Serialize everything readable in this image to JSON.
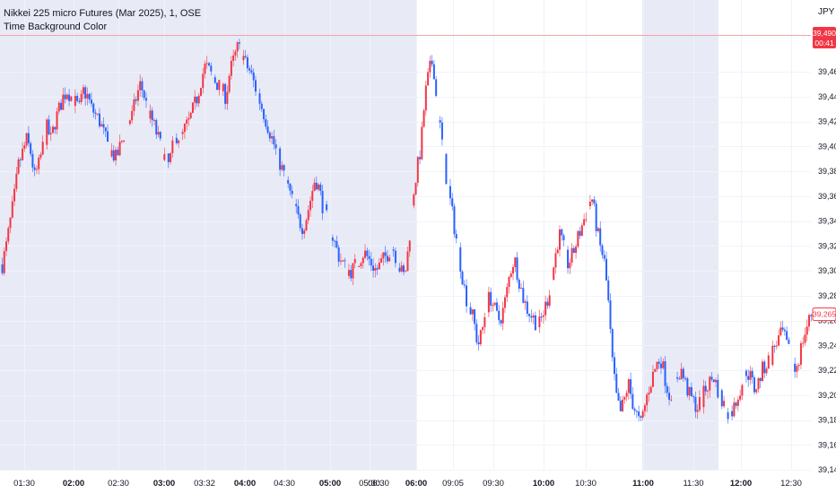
{
  "legend": {
    "symbol_line": "Nikkei 225 micro Futures (Mar 2025), 1, OSE",
    "indicator_line": "Time Background Color"
  },
  "currency": "JPY",
  "markers": {
    "upper_price": "39,490",
    "upper_time": "00:41",
    "last_price": "39,265"
  },
  "colors": {
    "up": "#f23645",
    "down": "#2962ff",
    "shade": "#e8eaf6",
    "marker_red": "#f23645",
    "marker_line": "#f5a3ab"
  },
  "chart_data": {
    "type": "candlestick",
    "title": "",
    "xlabel": "",
    "ylabel": "",
    "ylim": [
      39140,
      39500
    ],
    "y_ticks": [
      39460,
      39440,
      39420,
      39400,
      39380,
      39360,
      39340,
      39320,
      39300,
      39280,
      39260,
      39240,
      39220,
      39200,
      39180,
      39160,
      39140
    ],
    "y_tick_labels": [
      "39,460",
      "39,440",
      "39,420",
      "39,400",
      "39,380",
      "39,360",
      "39,340",
      "39,320",
      "39,300",
      "39,280",
      "39,260",
      "39,240",
      "39,220",
      "39,200",
      "39,180",
      "39,160",
      "39,140"
    ],
    "x_tick_labels": [
      {
        "label": "01:30",
        "bold": false
      },
      {
        "label": "02:00",
        "bold": true
      },
      {
        "label": "02:30",
        "bold": false
      },
      {
        "label": "03:00",
        "bold": true
      },
      {
        "label": "03:32",
        "bold": false
      },
      {
        "label": "04:00",
        "bold": true
      },
      {
        "label": "04:30",
        "bold": false
      },
      {
        "label": "05:00",
        "bold": true
      },
      {
        "label": "05:30",
        "bold": false
      },
      {
        "label": "06:30",
        "bold": false
      },
      {
        "label": "06:00",
        "bold": true
      },
      {
        "label": "09:05",
        "bold": false
      },
      {
        "label": "09:30",
        "bold": false
      },
      {
        "label": "10:00",
        "bold": true
      },
      {
        "label": "10:30",
        "bold": false
      },
      {
        "label": "11:00",
        "bold": true
      },
      {
        "label": "11:30",
        "bold": false
      },
      {
        "label": "12:00",
        "bold": true
      },
      {
        "label": "12:30",
        "bold": false
      }
    ],
    "shaded_ranges": [
      [
        "01:30",
        "06:00"
      ],
      [
        "11:00",
        "11:45"
      ]
    ],
    "price_path": [
      39305,
      39320,
      39340,
      39360,
      39385,
      39395,
      39405,
      39395,
      39375,
      39385,
      39400,
      39415,
      39405,
      39420,
      39430,
      39440,
      39445,
      39440,
      39435,
      39430,
      39445,
      39440,
      39430,
      39425,
      39420,
      39410,
      39400,
      39395,
      39390,
      39400,
      39410,
      39420,
      39425,
      39440,
      39450,
      39440,
      39425,
      39420,
      39410,
      39400,
      39390,
      39385,
      39400,
      39410,
      39405,
      39415,
      39420,
      39430,
      39440,
      39455,
      39465,
      39460,
      39455,
      39450,
      39445,
      39440,
      39460,
      39470,
      39480,
      39475,
      39465,
      39460,
      39450,
      39440,
      39430,
      39420,
      39410,
      39400,
      39390,
      39380,
      39370,
      39360,
      39350,
      39340,
      39335,
      39345,
      39360,
      39375,
      39365,
      39350,
      39340,
      39330,
      39320,
      39310,
      39305,
      39300,
      39300,
      39305,
      39310,
      39315,
      39310,
      39305,
      39300,
      39305,
      39310,
      39315,
      39320,
      39310,
      39300,
      39295,
      39320,
      39360,
      39380,
      39400,
      39440,
      39460,
      39470,
      39430,
      39410,
      39380,
      39360,
      39340,
      39320,
      39300,
      39280,
      39270,
      39260,
      39240,
      39250,
      39270,
      39280,
      39270,
      39260,
      39265,
      39280,
      39300,
      39310,
      39295,
      39280,
      39270,
      39265,
      39260,
      39255,
      39265,
      39275,
      39290,
      39310,
      39330,
      39320,
      39305,
      39310,
      39320,
      39330,
      39340,
      39350,
      39360,
      39340,
      39320,
      39310,
      39280,
      39230,
      39200,
      39185,
      39195,
      39210,
      39195,
      39185,
      39175,
      39190,
      39205,
      39215,
      39225,
      39230,
      39215,
      39200,
      39205,
      39215,
      39220,
      39210,
      39200,
      39195,
      39190,
      39195,
      39205,
      39210,
      39215,
      39205,
      39195,
      39190,
      39185,
      39190,
      39200,
      39210,
      39220,
      39215,
      39205,
      39210,
      39220,
      39225,
      39230,
      39240,
      39245,
      39250,
      39240,
      39230,
      39220,
      39230,
      39245,
      39255,
      39265
    ]
  }
}
